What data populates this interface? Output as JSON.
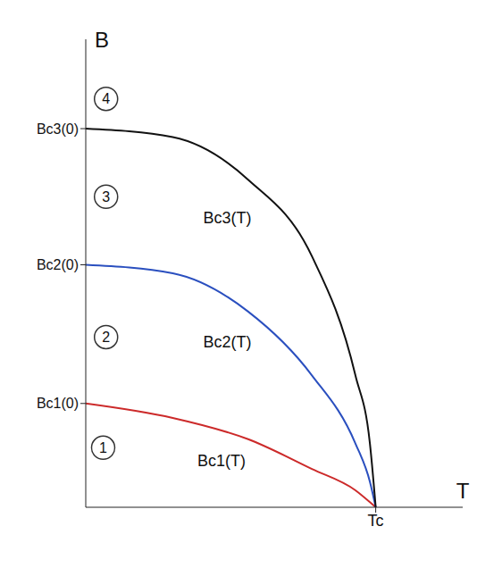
{
  "chart_data": {
    "type": "line",
    "x_label": "T",
    "y_label": "B",
    "x": [
      0,
      0.3,
      0.56,
      0.78,
      0.93,
      0.98,
      1.0
    ],
    "series": [
      {
        "name": "Bc1(T)",
        "color": "#cc2a2a",
        "values": [
          1.22,
          1.05,
          0.8,
          0.45,
          0.2,
          0.06,
          0
        ]
      },
      {
        "name": "Bc2(T)",
        "color": "#2a4fbf",
        "values": [
          2.85,
          2.75,
          2.3,
          1.55,
          0.75,
          0.3,
          0
        ]
      },
      {
        "name": "Bc3(T)",
        "color": "#111111",
        "values": [
          4.45,
          4.35,
          3.85,
          2.95,
          1.55,
          0.75,
          0
        ]
      }
    ],
    "xlim": [
      0,
      1.3
    ],
    "xticks": [
      {
        "value": 1.0,
        "label": "Tc"
      }
    ],
    "ylim": [
      0,
      5.5
    ],
    "yticks": [
      {
        "value": 1.22,
        "label": "Bc1(0)"
      },
      {
        "value": 2.85,
        "label": "Bc2(0)"
      },
      {
        "value": 4.45,
        "label": "Bc3(0)"
      }
    ],
    "grid": false,
    "annotations": [
      {
        "text": "Bc1(T)",
        "x": 0.37,
        "y": 0.55
      },
      {
        "text": "Bc2(T)",
        "x": 0.39,
        "y": 1.95
      },
      {
        "text": "Bc3(T)",
        "x": 0.39,
        "y": 3.4
      }
    ],
    "regions": [
      {
        "label": "1",
        "x": 0.06,
        "y": 0.7
      },
      {
        "label": "2",
        "x": 0.07,
        "y": 2.0
      },
      {
        "label": "3",
        "x": 0.07,
        "y": 3.65
      },
      {
        "label": "4",
        "x": 0.07,
        "y": 4.8
      }
    ]
  }
}
